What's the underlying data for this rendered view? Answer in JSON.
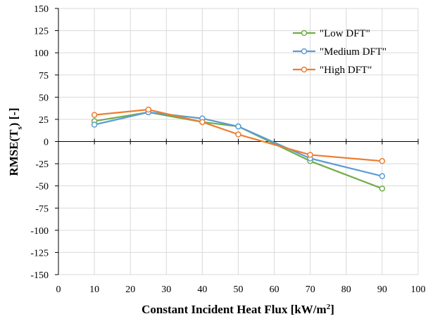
{
  "chart_data": {
    "type": "line",
    "title": "",
    "xlabel": "Constant Incident Heat Flux [kW/m",
    "xlabel_sup": "2",
    "xlabel_end": "]",
    "ylabel": "RMSE(T",
    "ylabel_sub": "s",
    "ylabel_end": ") [-]",
    "xlim": [
      0,
      100
    ],
    "ylim": [
      -150,
      150
    ],
    "xticks": [
      0,
      10,
      20,
      30,
      40,
      50,
      60,
      70,
      80,
      90,
      100
    ],
    "yticks": [
      150,
      125,
      100,
      75,
      50,
      25,
      0,
      -25,
      -50,
      -75,
      -100,
      -125,
      -150
    ],
    "grid": true,
    "legend_position": "top-right",
    "x": [
      10,
      25,
      40,
      50,
      70,
      90
    ],
    "series": [
      {
        "name": "\"Low DFT\"",
        "color": "#70ad47",
        "values": [
          23,
          33,
          22,
          17,
          -22,
          -53
        ]
      },
      {
        "name": "\"Medium DFT\"",
        "color": "#5b9bd5",
        "values": [
          19,
          33,
          26,
          17,
          -19,
          -39
        ]
      },
      {
        "name": "\"High DFT\"",
        "color": "#ed7d31",
        "values": [
          30,
          36,
          22,
          8,
          -15,
          -22
        ]
      }
    ]
  }
}
